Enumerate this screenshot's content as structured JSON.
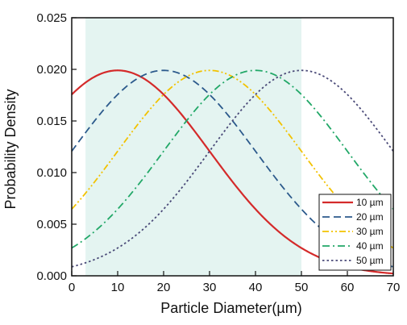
{
  "chart_data": {
    "type": "line",
    "title": "",
    "xlabel": "Particle Diameter(µm)",
    "ylabel": "Probability Density",
    "xlim": [
      0,
      70
    ],
    "ylim": [
      0,
      0.025
    ],
    "xticks": [
      "0",
      "10",
      "20",
      "30",
      "40",
      "50",
      "60",
      "70"
    ],
    "yticks": [
      "0.000",
      "0.005",
      "0.010",
      "0.015",
      "0.020",
      "0.025"
    ],
    "grid": false,
    "legend_position": "bottom-right",
    "shaded_region": {
      "x": [
        3,
        50
      ],
      "color": "#e4f4f1"
    },
    "series": [
      {
        "name": "10 µm",
        "mean": 10,
        "std": 20,
        "peak": 0.0199,
        "color": "#d42a2a",
        "dash": "solid"
      },
      {
        "name": "20 µm",
        "mean": 20,
        "std": 20,
        "peak": 0.0199,
        "color": "#2c5a8c",
        "dash": "dash"
      },
      {
        "name": "30 µm",
        "mean": 30,
        "std": 20,
        "peak": 0.0199,
        "color": "#f2c200",
        "dash": "dashdotdot"
      },
      {
        "name": "40 µm",
        "mean": 40,
        "std": 20,
        "peak": 0.0199,
        "color": "#22a868",
        "dash": "dashdot"
      },
      {
        "name": "50 µm",
        "mean": 50,
        "std": 20,
        "peak": 0.0199,
        "color": "#4a4a78",
        "dash": "dot"
      }
    ]
  }
}
